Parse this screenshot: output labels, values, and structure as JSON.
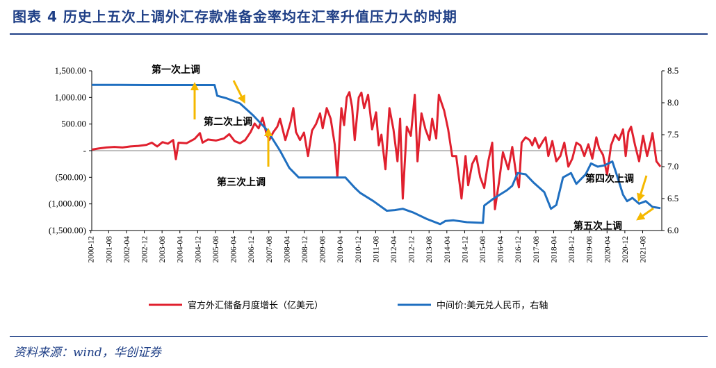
{
  "header": {
    "title": "图表 4   历史上五次上调外汇存款准备金率均在汇率升值压力大的时期"
  },
  "footer": {
    "source": "资料来源：wind，华创证券"
  },
  "colors": {
    "title": "#1f3f86",
    "reserves_line": "#e0202e",
    "fx_line": "#1f6fc0",
    "arrow": "#f5b800"
  },
  "chart_data": {
    "type": "line",
    "x_tick_labels": [
      "2000-12",
      "2001-08",
      "2002-04",
      "2002-12",
      "2003-08",
      "2004-04",
      "2004-12",
      "2005-08",
      "2006-04",
      "2006-12",
      "2007-08",
      "2008-04",
      "2008-12",
      "2009-08",
      "2010-04",
      "2010-12",
      "2011-08",
      "2012-04",
      "2012-12",
      "2013-08",
      "2014-04",
      "2014-12",
      "2015-08",
      "2016-04",
      "2016-12",
      "2017-08",
      "2018-04",
      "2018-12",
      "2019-08",
      "2020-04",
      "2020-12",
      "2021-08"
    ],
    "left_axis": {
      "ylim": [
        -1500,
        1500
      ],
      "tick_values": [
        1500,
        1000,
        500,
        0,
        -500,
        -1000,
        -1500
      ],
      "tick_labels": [
        "1,500.00",
        "1,000.00",
        "500.00",
        "-",
        "(500.00)",
        "(1,000.00)",
        "(1,500.00)"
      ]
    },
    "right_axis": {
      "ylim": [
        6.0,
        8.5
      ],
      "tick_values": [
        8.5,
        8.0,
        7.5,
        7.0,
        6.5,
        6.0
      ],
      "tick_labels": [
        "8.5",
        "8.0",
        "7.5",
        "7.0",
        "6.5",
        "6.0"
      ]
    },
    "series": [
      {
        "name": "官方外汇储备月度增长（亿美元）",
        "axis": "left",
        "color": "#e0202e",
        "points": [
          [
            2000.95,
            20
          ],
          [
            2001.2,
            40
          ],
          [
            2001.5,
            60
          ],
          [
            2001.8,
            70
          ],
          [
            2002.1,
            60
          ],
          [
            2002.4,
            80
          ],
          [
            2002.7,
            90
          ],
          [
            2003.0,
            110
          ],
          [
            2003.2,
            150
          ],
          [
            2003.4,
            80
          ],
          [
            2003.6,
            160
          ],
          [
            2003.8,
            130
          ],
          [
            2004.0,
            200
          ],
          [
            2004.1,
            -160
          ],
          [
            2004.2,
            150
          ],
          [
            2004.5,
            140
          ],
          [
            2004.8,
            220
          ],
          [
            2005.0,
            330
          ],
          [
            2005.1,
            150
          ],
          [
            2005.3,
            210
          ],
          [
            2005.6,
            190
          ],
          [
            2005.9,
            230
          ],
          [
            2006.1,
            310
          ],
          [
            2006.3,
            180
          ],
          [
            2006.5,
            140
          ],
          [
            2006.7,
            200
          ],
          [
            2006.9,
            350
          ],
          [
            2007.05,
            510
          ],
          [
            2007.2,
            420
          ],
          [
            2007.35,
            620
          ],
          [
            2007.5,
            300
          ],
          [
            2007.6,
            200
          ],
          [
            2007.75,
            350
          ],
          [
            2007.9,
            450
          ],
          [
            2008.0,
            600
          ],
          [
            2008.2,
            200
          ],
          [
            2008.4,
            540
          ],
          [
            2008.5,
            800
          ],
          [
            2008.6,
            350
          ],
          [
            2008.75,
            200
          ],
          [
            2008.9,
            340
          ],
          [
            2009.05,
            -100
          ],
          [
            2009.2,
            380
          ],
          [
            2009.35,
            500
          ],
          [
            2009.5,
            700
          ],
          [
            2009.6,
            420
          ],
          [
            2009.75,
            800
          ],
          [
            2009.9,
            600
          ],
          [
            2010.05,
            120
          ],
          [
            2010.15,
            -500
          ],
          [
            2010.3,
            800
          ],
          [
            2010.4,
            480
          ],
          [
            2010.5,
            1000
          ],
          [
            2010.6,
            1100
          ],
          [
            2010.7,
            820
          ],
          [
            2010.8,
            200
          ],
          [
            2010.95,
            1000
          ],
          [
            2011.05,
            1090
          ],
          [
            2011.15,
            800
          ],
          [
            2011.3,
            1050
          ],
          [
            2011.45,
            400
          ],
          [
            2011.6,
            720
          ],
          [
            2011.7,
            100
          ],
          [
            2011.8,
            300
          ],
          [
            2011.95,
            -350
          ],
          [
            2012.1,
            800
          ],
          [
            2012.25,
            400
          ],
          [
            2012.4,
            -200
          ],
          [
            2012.5,
            600
          ],
          [
            2012.6,
            -900
          ],
          [
            2012.75,
            450
          ],
          [
            2012.9,
            280
          ],
          [
            2013.05,
            1050
          ],
          [
            2013.15,
            -200
          ],
          [
            2013.3,
            700
          ],
          [
            2013.45,
            400
          ],
          [
            2013.6,
            200
          ],
          [
            2013.7,
            600
          ],
          [
            2013.85,
            230
          ],
          [
            2013.95,
            1050
          ],
          [
            2014.05,
            900
          ],
          [
            2014.15,
            750
          ],
          [
            2014.3,
            400
          ],
          [
            2014.45,
            -100
          ],
          [
            2014.6,
            -100
          ],
          [
            2014.8,
            -900
          ],
          [
            2014.95,
            -100
          ],
          [
            2015.05,
            -650
          ],
          [
            2015.2,
            -250
          ],
          [
            2015.35,
            -100
          ],
          [
            2015.5,
            -500
          ],
          [
            2015.65,
            -700
          ],
          [
            2015.8,
            -200
          ],
          [
            2015.95,
            150
          ],
          [
            2016.05,
            -1100
          ],
          [
            2016.2,
            -600
          ],
          [
            2016.35,
            -30
          ],
          [
            2016.55,
            -350
          ],
          [
            2016.7,
            70
          ],
          [
            2016.85,
            -460
          ],
          [
            2016.95,
            -690
          ],
          [
            2017.05,
            150
          ],
          [
            2017.2,
            250
          ],
          [
            2017.35,
            200
          ],
          [
            2017.45,
            100
          ],
          [
            2017.55,
            240
          ],
          [
            2017.7,
            50
          ],
          [
            2017.85,
            180
          ],
          [
            2017.95,
            250
          ],
          [
            2018.05,
            -100
          ],
          [
            2018.2,
            180
          ],
          [
            2018.35,
            -200
          ],
          [
            2018.5,
            -100
          ],
          [
            2018.65,
            150
          ],
          [
            2018.8,
            -300
          ],
          [
            2018.95,
            -150
          ],
          [
            2019.1,
            150
          ],
          [
            2019.25,
            100
          ],
          [
            2019.4,
            -100
          ],
          [
            2019.55,
            120
          ],
          [
            2019.7,
            -150
          ],
          [
            2019.85,
            250
          ],
          [
            2019.95,
            50
          ],
          [
            2020.1,
            -80
          ],
          [
            2020.25,
            -450
          ],
          [
            2020.4,
            100
          ],
          [
            2020.55,
            300
          ],
          [
            2020.7,
            200
          ],
          [
            2020.85,
            400
          ],
          [
            2020.95,
            -100
          ],
          [
            2021.05,
            350
          ],
          [
            2021.15,
            450
          ],
          [
            2021.3,
            100
          ],
          [
            2021.45,
            -200
          ],
          [
            2021.6,
            280
          ],
          [
            2021.75,
            -100
          ],
          [
            2021.9,
            200
          ],
          [
            2021.95,
            330
          ],
          [
            2022.1,
            -200
          ],
          [
            2022.25,
            -300
          ]
        ]
      },
      {
        "name": "中间价:美元兑人民币，右轴",
        "axis": "right",
        "color": "#1f6fc0",
        "points": [
          [
            2000.95,
            8.28
          ],
          [
            2002.0,
            8.28
          ],
          [
            2003.0,
            8.277
          ],
          [
            2004.0,
            8.277
          ],
          [
            2005.0,
            8.277
          ],
          [
            2005.55,
            8.277
          ],
          [
            2005.65,
            8.11
          ],
          [
            2006.0,
            8.07
          ],
          [
            2006.5,
            7.99
          ],
          [
            2007.0,
            7.8
          ],
          [
            2007.5,
            7.58
          ],
          [
            2008.0,
            7.25
          ],
          [
            2008.35,
            6.98
          ],
          [
            2008.7,
            6.83
          ],
          [
            2009.0,
            6.83
          ],
          [
            2009.5,
            6.83
          ],
          [
            2010.0,
            6.83
          ],
          [
            2010.45,
            6.83
          ],
          [
            2010.8,
            6.67
          ],
          [
            2011.0,
            6.59
          ],
          [
            2011.5,
            6.46
          ],
          [
            2012.0,
            6.31
          ],
          [
            2012.3,
            6.32
          ],
          [
            2012.6,
            6.34
          ],
          [
            2013.0,
            6.28
          ],
          [
            2013.5,
            6.18
          ],
          [
            2014.0,
            6.1
          ],
          [
            2014.2,
            6.15
          ],
          [
            2014.5,
            6.16
          ],
          [
            2015.0,
            6.13
          ],
          [
            2015.6,
            6.12
          ],
          [
            2015.65,
            6.39
          ],
          [
            2016.0,
            6.5
          ],
          [
            2016.5,
            6.63
          ],
          [
            2016.7,
            6.7
          ],
          [
            2016.9,
            6.9
          ],
          [
            2017.2,
            6.88
          ],
          [
            2017.5,
            6.75
          ],
          [
            2017.9,
            6.6
          ],
          [
            2018.15,
            6.34
          ],
          [
            2018.35,
            6.4
          ],
          [
            2018.6,
            6.83
          ],
          [
            2018.9,
            6.9
          ],
          [
            2019.1,
            6.73
          ],
          [
            2019.45,
            6.88
          ],
          [
            2019.65,
            7.05
          ],
          [
            2019.9,
            7.0
          ],
          [
            2020.15,
            7.02
          ],
          [
            2020.45,
            7.08
          ],
          [
            2020.6,
            6.89
          ],
          [
            2020.85,
            6.56
          ],
          [
            2021.0,
            6.46
          ],
          [
            2021.2,
            6.51
          ],
          [
            2021.45,
            6.42
          ],
          [
            2021.7,
            6.46
          ],
          [
            2021.95,
            6.37
          ],
          [
            2022.1,
            6.36
          ],
          [
            2022.25,
            6.35
          ]
        ]
      }
    ],
    "annotations": [
      {
        "label": "第一次上调",
        "x": 2004.0,
        "y": 8.5
      },
      {
        "label": "第二次上调",
        "x": 2006.2,
        "y": 7.6
      },
      {
        "label": "第三次上调",
        "x": 2007.5,
        "y": 6.85
      },
      {
        "label": "第四次上调",
        "x": 2020.2,
        "y": 6.8
      },
      {
        "label": "第五次上调",
        "x": 2019.7,
        "y": 6.15
      }
    ]
  }
}
